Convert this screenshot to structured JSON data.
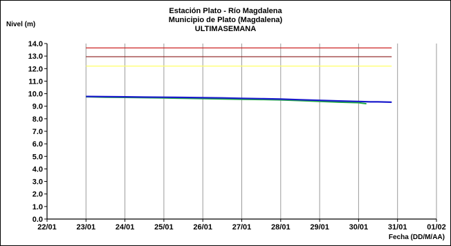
{
  "chart_data": {
    "type": "line",
    "title_lines": [
      "Estación Plato - Río Magdalena",
      "Municipio de Plato (Magdalena)",
      "ULTIMASEMANA"
    ],
    "ylabel": "Nivel (m)",
    "xlabel": "Fecha (DD/M/AA)",
    "xlim": [
      22,
      32
    ],
    "ylim": [
      0,
      14
    ],
    "x_ticks": [
      22,
      23,
      24,
      25,
      26,
      27,
      28,
      29,
      30,
      31,
      32
    ],
    "x_tick_labels": [
      "22/01",
      "23/01",
      "24/01",
      "25/01",
      "26/01",
      "27/01",
      "28/01",
      "29/01",
      "30/01",
      "31/01",
      "01/02"
    ],
    "y_ticks": [
      0,
      1,
      2,
      3,
      4,
      5,
      6,
      7,
      8,
      9,
      10,
      11,
      12,
      13,
      14
    ],
    "y_tick_labels": [
      "0.0",
      "1.0",
      "2.0",
      "3.0",
      "4.0",
      "5.0",
      "6.0",
      "7.0",
      "8.0",
      "9.0",
      "10.0",
      "11.0",
      "12.0",
      "13.0",
      "14.0"
    ],
    "grid": "vertical",
    "reference_lines": [
      {
        "y": 13.65,
        "x_range": [
          23,
          30.85
        ],
        "color": "#cc2222"
      },
      {
        "y": 12.95,
        "x_range": [
          23,
          30.85
        ],
        "color": "#8b1a1a"
      },
      {
        "y": 12.2,
        "x_range": [
          23,
          30.85
        ],
        "color": "#ffff66"
      }
    ],
    "series": [
      {
        "color": "#22aa44",
        "x": [
          23.0,
          23.5,
          24.0,
          24.5,
          25.0,
          25.5,
          26.0,
          26.5,
          27.0,
          27.5,
          28.0,
          28.5,
          29.0,
          29.5,
          30.0,
          30.2
        ],
        "y": [
          9.75,
          9.72,
          9.7,
          9.68,
          9.66,
          9.63,
          9.6,
          9.58,
          9.55,
          9.53,
          9.5,
          9.45,
          9.38,
          9.32,
          9.28,
          9.2
        ]
      },
      {
        "color": "#1a1acc",
        "x": [
          23.0,
          23.5,
          24.0,
          24.5,
          25.0,
          25.5,
          26.0,
          26.5,
          27.0,
          27.5,
          28.0,
          28.5,
          29.0,
          29.5,
          30.0,
          30.3,
          30.5,
          30.85
        ],
        "y": [
          9.78,
          9.76,
          9.75,
          9.73,
          9.72,
          9.7,
          9.68,
          9.66,
          9.63,
          9.6,
          9.57,
          9.52,
          9.47,
          9.42,
          9.38,
          9.35,
          9.35,
          9.32
        ]
      }
    ]
  }
}
